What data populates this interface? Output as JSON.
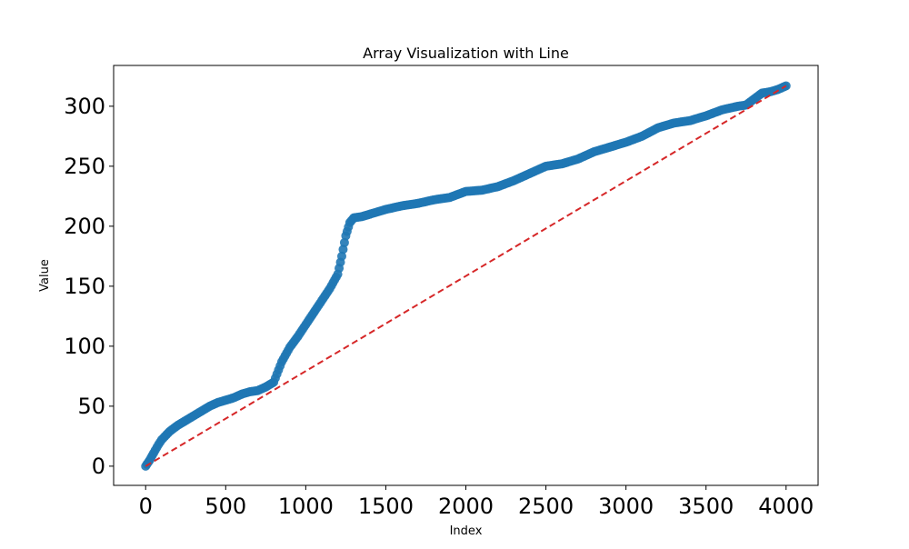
{
  "chart_data": {
    "type": "scatter",
    "title": "Array Visualization with Line",
    "xlabel": "Index",
    "ylabel": "Value",
    "xlim": [
      -200,
      4200
    ],
    "ylim": [
      -16,
      334
    ],
    "xticks": [
      0,
      500,
      1000,
      1500,
      2000,
      2500,
      3000,
      3500,
      4000
    ],
    "yticks": [
      0,
      50,
      100,
      150,
      200,
      250,
      300
    ],
    "grid": false,
    "series": [
      {
        "kind": "scatter",
        "color": "#1f77b4",
        "x": [
          0,
          25,
          50,
          80,
          100,
          150,
          200,
          250,
          300,
          350,
          400,
          450,
          500,
          550,
          600,
          650,
          700,
          750,
          800,
          850,
          900,
          950,
          1000,
          1050,
          1100,
          1150,
          1200,
          1225,
          1250,
          1275,
          1300,
          1350,
          1400,
          1450,
          1500,
          1600,
          1700,
          1800,
          1900,
          2000,
          2100,
          2200,
          2300,
          2400,
          2500,
          2600,
          2700,
          2800,
          2900,
          3000,
          3100,
          3200,
          3300,
          3400,
          3500,
          3600,
          3700,
          3750,
          3800,
          3850,
          3900,
          3950,
          4000
        ],
        "y": [
          0,
          5,
          11,
          18,
          22,
          29,
          34,
          38,
          42,
          46,
          50,
          53,
          55,
          57,
          60,
          62,
          63,
          66,
          70,
          87,
          99,
          108,
          118,
          128,
          138,
          148,
          160,
          175,
          192,
          203,
          207,
          208,
          210,
          212,
          214,
          217,
          219,
          222,
          224,
          229,
          230,
          233,
          238,
          244,
          250,
          252,
          256,
          262,
          266,
          270,
          275,
          282,
          286,
          288,
          292,
          297,
          300,
          301,
          306,
          311,
          312,
          314,
          317
        ]
      },
      {
        "kind": "line",
        "style": "dashed",
        "color": "#d62728",
        "x": [
          0,
          4000
        ],
        "y": [
          0,
          317
        ]
      }
    ]
  }
}
